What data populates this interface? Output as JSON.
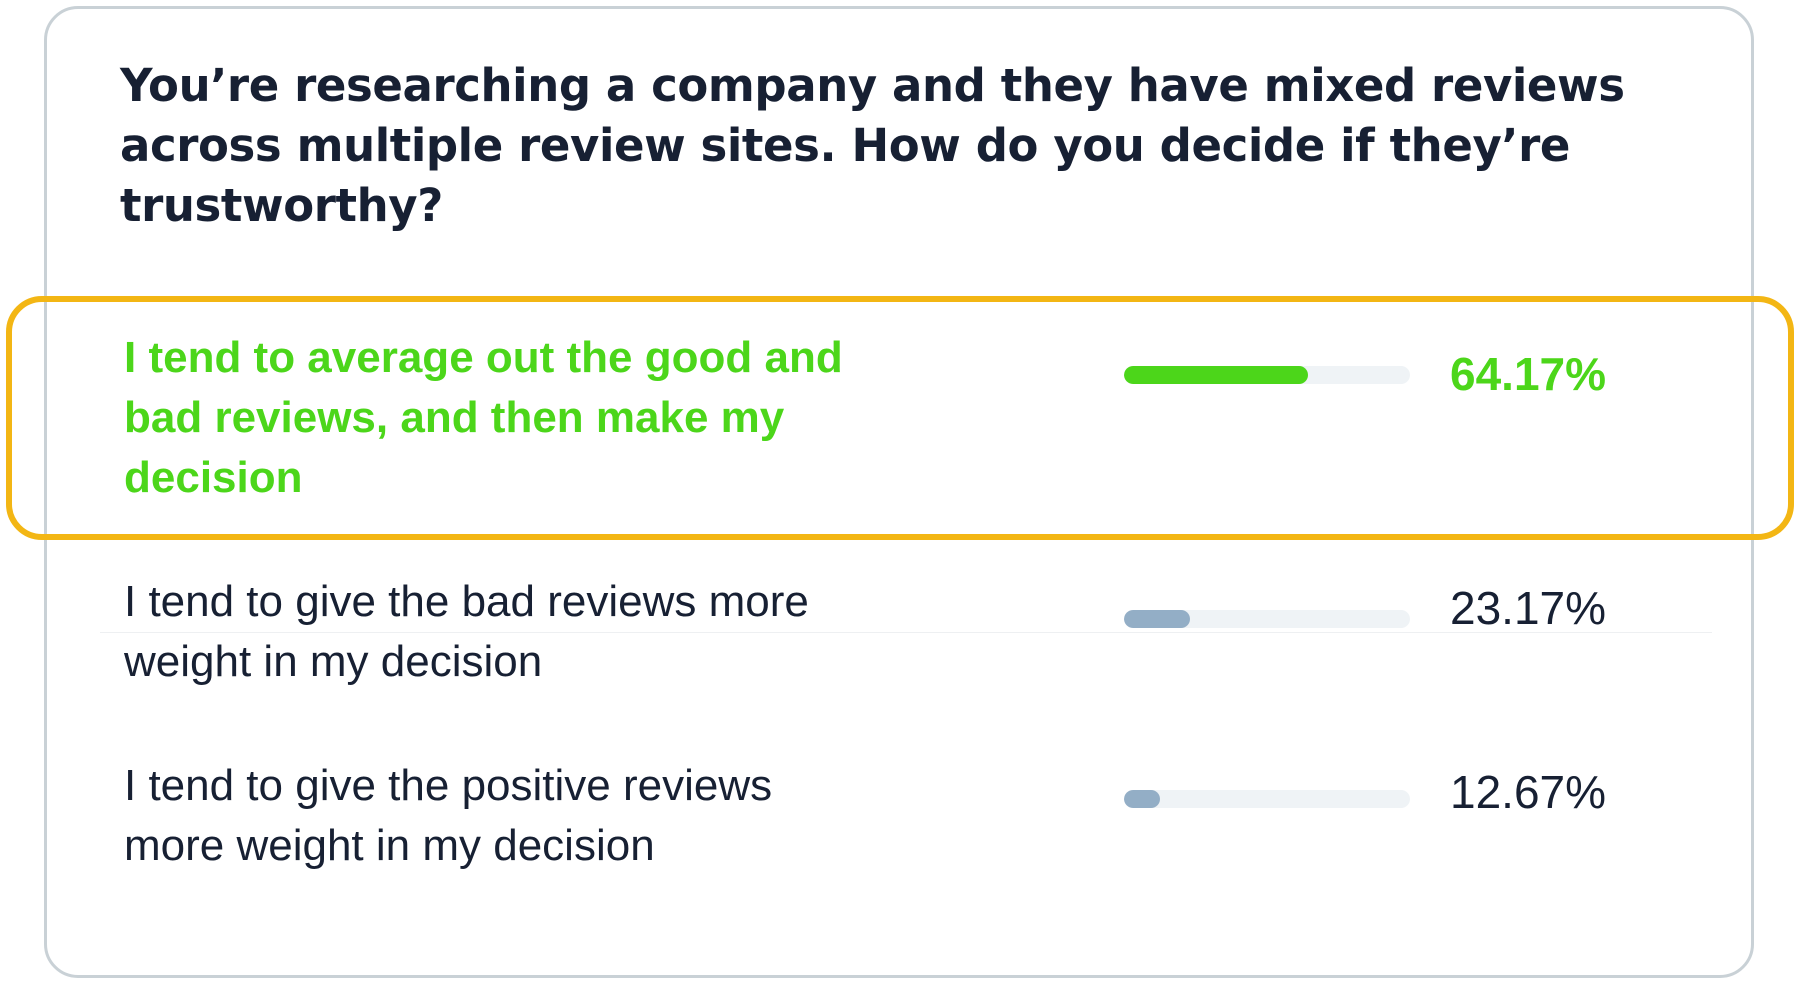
{
  "poll": {
    "question": "You’re researching a company and they have mixed reviews across multiple review sites. How do you decide if they’re trustworthy?"
  },
  "chart_data": {
    "type": "bar",
    "title": "You’re researching a company and they have mixed reviews across multiple review sites. How do you decide if they’re trustworthy?",
    "categories": [
      "I tend to average out the good and bad reviews, and then make my decision",
      "I tend to give the bad reviews more weight in my decision",
      "I tend to give the positive reviews more weight in my decision"
    ],
    "values": [
      64.17,
      23.17,
      12.67
    ],
    "value_labels": [
      "64.17%",
      "23.17%",
      "12.67%"
    ],
    "ylim": [
      0,
      100
    ],
    "highlighted_index": 0,
    "colors": {
      "highlight_bar": "#4cd61a",
      "bar": "#93aec6",
      "track": "#eff3f6",
      "highlight_border": "#f3b614",
      "text": "#172033"
    },
    "grid": false,
    "legend": "none"
  }
}
